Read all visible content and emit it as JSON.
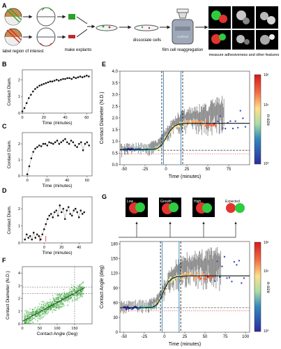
{
  "panels": {
    "A": {
      "letter": "A",
      "steps": [
        "label region of interest",
        "make explants",
        "dissociate cells",
        "film cell reaggregation",
        "measure adhesiveness and other features"
      ],
      "microscope_label": "confocal"
    },
    "B": {
      "letter": "B"
    },
    "C": {
      "letter": "C"
    },
    "D": {
      "letter": "D"
    },
    "E": {
      "letter": "E"
    },
    "F": {
      "letter": "F"
    },
    "G": {
      "letter": "G"
    }
  },
  "insets": {
    "low": "Low",
    "growth": "Growth",
    "high": "High",
    "expected": "Expected"
  },
  "colorbar": {
    "label": "n-size",
    "top_tick": "10²",
    "mid_tick": "10¹",
    "bottom_tick": "10⁰",
    "colors": [
      "#d7191c",
      "#f46d43",
      "#fdae61",
      "#fee08b",
      "#e6f598",
      "#66c2a5",
      "#3288bd",
      "#2c2ca0"
    ]
  },
  "chart_data": [
    {
      "id": "B",
      "type": "scatter",
      "xlabel": "Time (minutes)",
      "ylabel": "Contact Diam.",
      "xticks": [
        "0",
        "20",
        "40",
        "60"
      ],
      "yticks": [
        "0",
        "1",
        "2"
      ],
      "xlim": [
        0,
        65
      ],
      "ylim": [
        0,
        2.6
      ],
      "x": [
        0,
        2,
        4,
        6,
        8,
        10,
        12,
        14,
        16,
        18,
        20,
        22,
        24,
        26,
        28,
        30,
        32,
        34,
        36,
        38,
        40,
        42,
        44,
        46,
        48,
        50,
        52,
        54,
        56,
        58,
        60,
        62
      ],
      "y": [
        0.1,
        0.3,
        0.6,
        0.9,
        1.1,
        1.3,
        1.45,
        1.55,
        1.65,
        1.7,
        1.75,
        1.8,
        1.85,
        1.9,
        1.9,
        1.95,
        2.0,
        1.95,
        2.0,
        2.05,
        2.05,
        2.1,
        2.1,
        2.05,
        2.15,
        2.1,
        2.15,
        2.2,
        2.15,
        2.2,
        2.25,
        2.2
      ]
    },
    {
      "id": "C",
      "type": "scatter",
      "xlabel": "Time (minutes)",
      "ylabel": "Contact Diam.",
      "xticks": [
        "0",
        "20",
        "40",
        "60"
      ],
      "yticks": [
        "0",
        "1",
        "2"
      ],
      "xlim": [
        -5,
        65
      ],
      "ylim": [
        0,
        2.7
      ],
      "x": [
        0,
        2,
        4,
        6,
        8,
        10,
        12,
        14,
        16,
        18,
        20,
        22,
        24,
        26,
        28,
        30,
        32,
        34,
        36,
        38,
        40,
        42,
        44,
        46,
        48,
        50,
        52,
        54,
        56,
        58,
        60,
        62
      ],
      "y": [
        0.1,
        0.6,
        1.1,
        1.5,
        1.7,
        1.8,
        1.9,
        1.85,
        2.0,
        2.0,
        1.9,
        2.1,
        2.05,
        2.0,
        2.1,
        2.2,
        2.0,
        2.1,
        2.2,
        2.3,
        2.1,
        2.0,
        2.2,
        2.1,
        1.9,
        1.8,
        2.0,
        2.1,
        1.6,
        2.0,
        2.1,
        1.9
      ]
    },
    {
      "id": "D",
      "type": "scatter",
      "xlabel": "Time (minutes)",
      "ylabel": "Contact Diam.",
      "xticks": [
        "0",
        "20",
        "40"
      ],
      "yticks": [
        "0",
        "1",
        "2"
      ],
      "xlim": [
        -25,
        55
      ],
      "ylim": [
        0,
        2.7
      ],
      "x": [
        -22,
        -20,
        -18,
        -16,
        -14,
        -12,
        -10,
        -8,
        -6,
        -4,
        -2,
        0,
        2,
        4,
        6,
        8,
        10,
        12,
        14,
        16,
        18,
        20,
        22,
        24,
        26,
        28,
        30,
        32,
        34,
        36,
        38,
        40,
        42,
        44,
        46
      ],
      "y": [
        0.2,
        0.5,
        0.3,
        0.4,
        0.2,
        0.6,
        0.3,
        0.5,
        0.4,
        0.2,
        0.5,
        0.8,
        1.1,
        1.4,
        1.6,
        1.7,
        1.5,
        1.8,
        1.9,
        1.6,
        2.2,
        1.8,
        2.0,
        1.4,
        1.9,
        2.1,
        1.7,
        1.6,
        1.9,
        2.0,
        1.8,
        1.5,
        1.9,
        1.7,
        1.8
      ]
    },
    {
      "id": "E",
      "type": "line",
      "xlabel": "Time (minutes)",
      "ylabel": "Contact Diameter (N.D.)",
      "xticks": [
        "-50",
        "-25",
        "0",
        "25",
        "50",
        "75"
      ],
      "yticks": [
        "0.0",
        "0.5",
        "1.0",
        "1.5",
        "2.0",
        "2.5",
        "3.0",
        "3.5",
        "4.0"
      ],
      "xlim": [
        -55,
        100
      ],
      "ylim": [
        0,
        4.0
      ],
      "fit_x": [
        -55,
        -40,
        -25,
        -15,
        -10,
        -5,
        0,
        5,
        10,
        15,
        20,
        30,
        50,
        75,
        100
      ],
      "fit_y": [
        0.65,
        0.65,
        0.65,
        0.66,
        0.7,
        0.85,
        1.15,
        1.45,
        1.65,
        1.73,
        1.76,
        1.77,
        1.77,
        1.77,
        1.77
      ],
      "band_low_x": [
        -55,
        -40,
        -20,
        -10,
        0,
        10,
        20,
        30,
        40,
        50,
        60,
        70
      ],
      "band_low_y": [
        0.3,
        0.35,
        0.35,
        0.5,
        0.9,
        1.2,
        1.3,
        1.3,
        1.25,
        1.2,
        1.3,
        1.2
      ],
      "band_high_y": [
        0.9,
        0.95,
        1.0,
        1.1,
        1.6,
        2.1,
        2.4,
        2.5,
        2.6,
        2.7,
        2.9,
        3.0
      ],
      "ref_lines": [
        0.62,
        0.47
      ],
      "vlines_solid": [
        -3,
        18
      ],
      "vlines_dashed": [
        -5,
        20
      ]
    },
    {
      "id": "F",
      "type": "scatter",
      "xlabel": "Contact Angle (Deg)",
      "ylabel": "Contact Diameter (N.D.)",
      "xticks": [
        "0",
        "50",
        "100",
        "150"
      ],
      "yticks": [
        "0",
        "1",
        "2",
        "3",
        "4"
      ],
      "xlim": [
        0,
        200
      ],
      "ylim": [
        0,
        4.5
      ],
      "hlines": [
        2.4,
        2.9
      ],
      "vline": 150
    },
    {
      "id": "G",
      "type": "line",
      "xlabel": "Time (minutes)",
      "ylabel": "Contact Angle (deg)",
      "xticks": [
        "-50",
        "-25",
        "0",
        "25",
        "50",
        "75",
        "100"
      ],
      "yticks": [
        "0",
        "30",
        "60",
        "90",
        "120",
        "150",
        "180"
      ],
      "xlim": [
        -55,
        105
      ],
      "ylim": [
        0,
        185
      ],
      "fit_x": [
        -55,
        -40,
        -25,
        -15,
        -10,
        -5,
        0,
        5,
        10,
        15,
        20,
        30,
        50,
        75,
        105
      ],
      "fit_y": [
        50,
        50,
        50,
        51,
        55,
        68,
        88,
        103,
        110,
        113,
        114,
        115,
        115,
        115,
        115
      ],
      "band_low_y": [
        35,
        38,
        38,
        45,
        60,
        80,
        85,
        90,
        88,
        85,
        90,
        80
      ],
      "band_high_y": [
        65,
        66,
        68,
        75,
        110,
        140,
        160,
        165,
        170,
        170,
        175,
        175
      ],
      "ref_lines": [
        50,
        44
      ],
      "vlines_solid": [
        -3,
        18
      ],
      "vlines_dashed": [
        -5,
        20
      ]
    }
  ]
}
